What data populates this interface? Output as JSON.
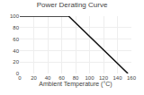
{
  "chart_data": {
    "type": "line",
    "title": "Power Derating Curve",
    "xlabel": "Ambient Temperature (°C)",
    "x": [
      0,
      70,
      155
    ],
    "values": [
      100,
      100,
      0
    ],
    "color": "#111111",
    "xlim": [
      0,
      160
    ],
    "ylim": [
      0,
      100
    ],
    "xticks": [
      0,
      20,
      40,
      60,
      80,
      100,
      120,
      140,
      160
    ],
    "yticks": [
      0,
      20,
      40,
      60,
      80,
      100
    ],
    "grid": true
  }
}
